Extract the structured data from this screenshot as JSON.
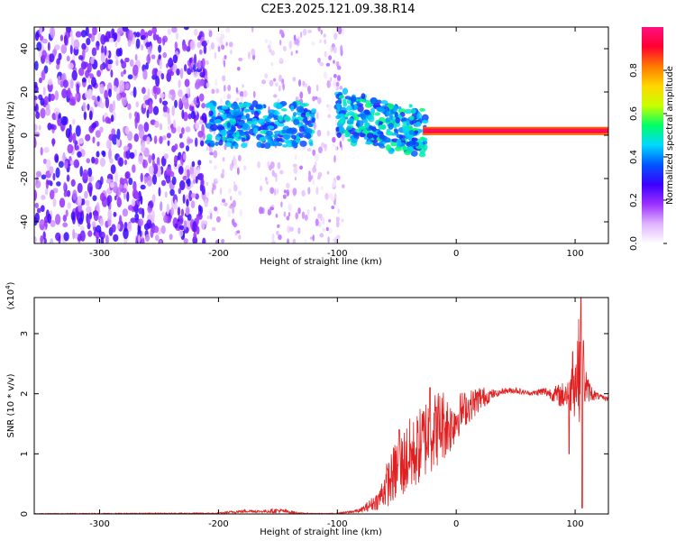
{
  "title": "C2E3.2025.121.09.38.R14",
  "colors": {
    "signal_band": "#ff3030",
    "noise": "#6a00e8",
    "snr_line": "#e02020",
    "axes": "#000000"
  },
  "chart_data": [
    {
      "type": "heatmap",
      "name": "spectrogram",
      "xlabel": "Height of straight line (km)",
      "ylabel": "Frequency (Hz)",
      "xlim": [
        -355,
        128
      ],
      "ylim": [
        -50,
        50
      ],
      "xticks": [
        -300,
        -200,
        -100,
        0,
        100
      ],
      "yticks": [
        -40,
        -20,
        0,
        20,
        40
      ],
      "colorbar": {
        "label": "Normalized spectral amplitude",
        "range": [
          0,
          1
        ],
        "ticks": [
          "0.0",
          "0.2",
          "0.4",
          "0.6",
          "0.8"
        ],
        "colormap": [
          "#ffffff",
          "#dfb4ff",
          "#9b30ff",
          "#3b00ff",
          "#0055ff",
          "#00d8ff",
          "#00ff66",
          "#c8ff00",
          "#ffd700",
          "#ff7a00",
          "#ff0030",
          "#ff1080"
        ]
      },
      "regions": [
        {
          "label": "dense noise",
          "x": [
            -355,
            -210
          ],
          "y": [
            -50,
            50
          ],
          "amplitude": [
            0.05,
            0.3
          ]
        },
        {
          "label": "sparse noise",
          "x": [
            -210,
            -95
          ],
          "y": [
            -50,
            50
          ],
          "amplitude": [
            0.02,
            0.15
          ]
        },
        {
          "label": "early echo",
          "x": [
            -210,
            -120
          ],
          "y": [
            -5,
            15
          ],
          "amplitude": [
            0.3,
            0.5
          ]
        },
        {
          "label": "scattered echo",
          "x": [
            -100,
            -25
          ],
          "y": [
            -5,
            15
          ],
          "amplitude": [
            0.3,
            0.55
          ]
        },
        {
          "label": "steady signal",
          "x": [
            -28,
            128
          ],
          "y": [
            0,
            4
          ],
          "amplitude": [
            0.8,
            1.0
          ]
        }
      ],
      "signal_center_hz": 2
    },
    {
      "type": "line",
      "name": "snr",
      "xlabel": "Height of straight line (km)",
      "ylabel": "SNR (10 * v/v)",
      "yscale_label": "(x10",
      "yscale_exp": "4",
      "xlim": [
        -355,
        128
      ],
      "ylim": [
        0,
        3.6
      ],
      "xticks": [
        -300,
        -200,
        -100,
        0,
        100
      ],
      "yticks": [
        0,
        1,
        2,
        3
      ],
      "envelope": {
        "x": [
          -355,
          -200,
          -190,
          -175,
          -165,
          -150,
          -130,
          -110,
          -100,
          -90,
          -80,
          -70,
          -65,
          -60,
          -55,
          -50,
          -45,
          -40,
          -35,
          -30,
          -25,
          -20,
          -15,
          -10,
          -5,
          0,
          5,
          10,
          15,
          20,
          25,
          30,
          35,
          40,
          45,
          50,
          55,
          60,
          65,
          70,
          75,
          80,
          85,
          90,
          95,
          100,
          105,
          110,
          115,
          120,
          128
        ],
        "low": [
          0.0,
          0.0,
          0.01,
          0.02,
          0.02,
          0.01,
          0.0,
          0.0,
          0.0,
          0.01,
          0.02,
          0.05,
          0.08,
          0.1,
          0.15,
          0.2,
          0.25,
          0.3,
          0.4,
          0.5,
          0.6,
          0.7,
          0.8,
          0.9,
          1.0,
          1.2,
          1.4,
          1.5,
          1.6,
          1.7,
          1.8,
          1.9,
          1.95,
          2.0,
          2.0,
          2.0,
          1.98,
          1.98,
          1.97,
          1.96,
          1.95,
          1.9,
          1.8,
          1.75,
          1.7,
          1.6,
          1.5,
          1.85,
          1.88,
          1.9,
          1.88
        ],
        "high": [
          0.01,
          0.02,
          0.05,
          0.08,
          0.06,
          0.1,
          0.02,
          0.01,
          0.02,
          0.05,
          0.1,
          0.3,
          0.4,
          0.8,
          1.0,
          1.3,
          1.4,
          1.6,
          1.6,
          1.8,
          2.0,
          2.0,
          2.1,
          2.1,
          1.9,
          2.0,
          2.05,
          2.05,
          2.1,
          2.15,
          2.1,
          2.08,
          2.05,
          2.1,
          2.1,
          2.12,
          2.08,
          2.05,
          2.05,
          2.1,
          2.12,
          2.1,
          2.15,
          2.2,
          2.4,
          2.8,
          3.6,
          2.3,
          2.1,
          2.0,
          1.95
        ]
      },
      "peaks": [
        {
          "x": 105,
          "y": 3.6
        },
        {
          "x": 106,
          "y": 0.1
        },
        {
          "x": 98,
          "y": 2.7
        },
        {
          "x": 95,
          "y": 1.0
        },
        {
          "x": -48,
          "y": 1.4
        },
        {
          "x": -22,
          "y": 2.1
        }
      ]
    }
  ]
}
